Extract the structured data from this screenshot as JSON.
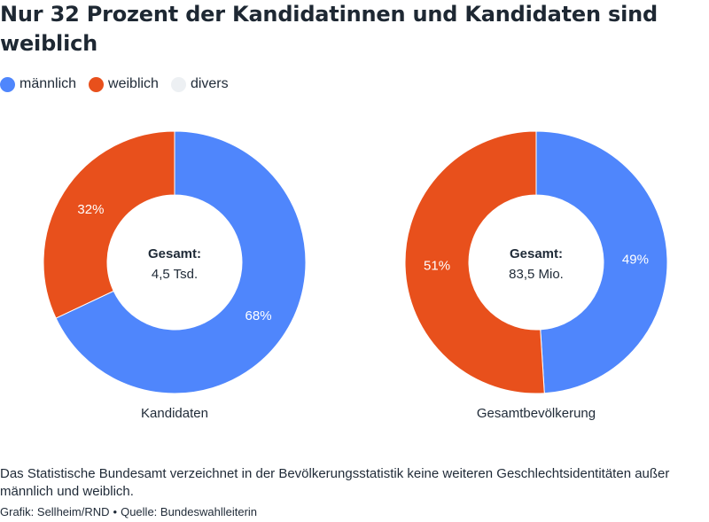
{
  "title": "Nur 32 Prozent der Kandidatinnen und Kandidaten sind weiblich",
  "legend": [
    {
      "label": "männlich",
      "color": "#4f86fc"
    },
    {
      "label": "weiblich",
      "color": "#e8501c"
    },
    {
      "label": "divers",
      "color": "#edf0f3"
    }
  ],
  "chart_data": [
    {
      "type": "pie",
      "title": "Kandidaten",
      "center_label": "Gesamt:",
      "center_value": "4,5 Tsd.",
      "slices": [
        {
          "category": "männlich",
          "value": 68,
          "label": "68%"
        },
        {
          "category": "weiblich",
          "value": 32,
          "label": "32%"
        },
        {
          "category": "divers",
          "value": 0,
          "label": ""
        }
      ]
    },
    {
      "type": "pie",
      "title": "Gesamtbevölkerung",
      "center_label": "Gesamt:",
      "center_value": "83,5 Mio.",
      "slices": [
        {
          "category": "männlich",
          "value": 49,
          "label": "49%"
        },
        {
          "category": "weiblich",
          "value": 51,
          "label": "51%"
        },
        {
          "category": "divers",
          "value": 0,
          "label": ""
        }
      ]
    }
  ],
  "note": "Das Statistische Bundesamt verzeichnet in der Bevölkerungsstatistik keine weiteren Geschlechtsidentitäten außer männlich und weiblich.",
  "credit": {
    "grafik": "Grafik: Sellheim/RND",
    "separator": "•",
    "quelle": "Quelle: Bundeswahlleiterin"
  }
}
